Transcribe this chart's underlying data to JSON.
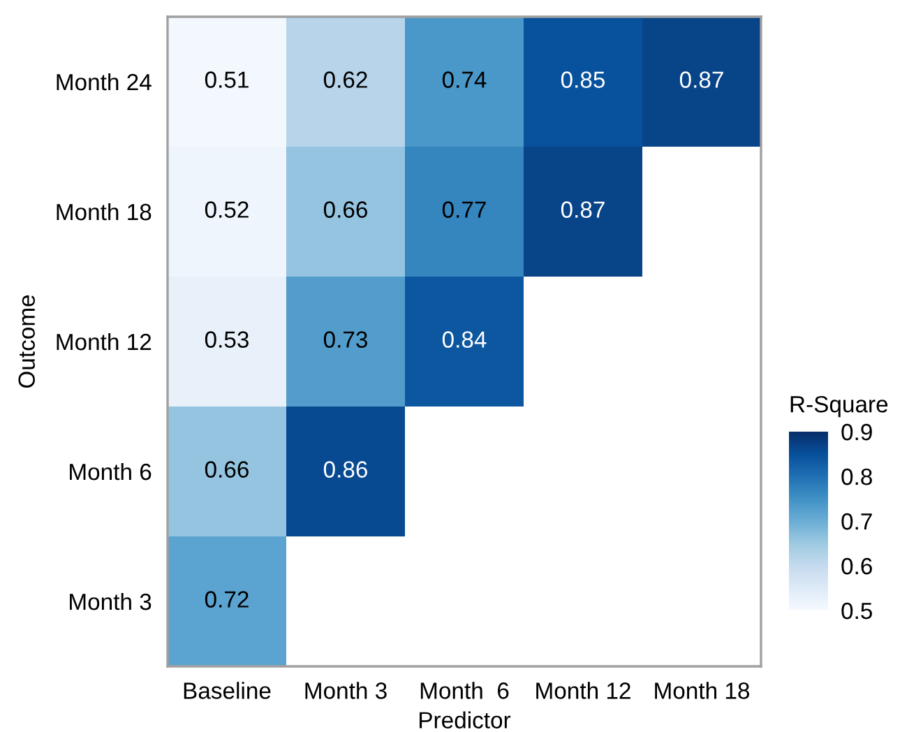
{
  "chart_data": {
    "type": "heatmap",
    "xlabel": "Predictor",
    "ylabel": "Outcome",
    "clabel": "R-Square",
    "categories": [
      "Baseline",
      "Month 3",
      "Month  6",
      "Month 12",
      "Month 18"
    ],
    "y_categories": [
      "Month 24",
      "Month 18",
      "Month 12",
      "Month 6",
      "Month 3"
    ],
    "cells": [
      [
        0.51,
        0.62,
        0.74,
        0.85,
        0.87
      ],
      [
        0.52,
        0.66,
        0.77,
        0.87,
        null
      ],
      [
        0.53,
        0.73,
        0.84,
        null,
        null
      ],
      [
        0.66,
        0.86,
        null,
        null,
        null
      ],
      [
        0.72,
        null,
        null,
        null,
        null
      ]
    ],
    "data_labels": true,
    "clim": [
      0.5,
      0.9
    ],
    "cticks": [
      0.5,
      0.6,
      0.7,
      0.8,
      0.9
    ],
    "grid": false
  }
}
